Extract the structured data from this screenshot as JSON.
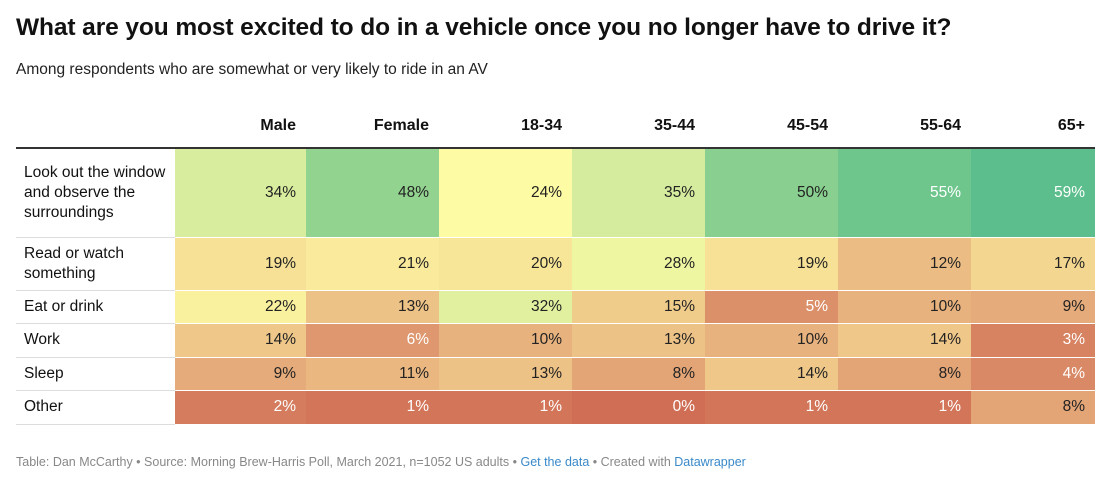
{
  "header": {
    "title": "What are you most excited to do in a vehicle once you no longer have to drive it?",
    "subtitle": "Among respondents who are somewhat or very likely to ride in an AV"
  },
  "chart_data": {
    "type": "heatmap",
    "columns": [
      "Male",
      "Female",
      "18-34",
      "35-44",
      "45-54",
      "55-64",
      "65+"
    ],
    "rows": [
      {
        "label": "Look out the window and observe the surroundings",
        "values": [
          34,
          48,
          24,
          35,
          50,
          55,
          59
        ]
      },
      {
        "label": "Read or watch something",
        "values": [
          19,
          21,
          20,
          28,
          19,
          12,
          17
        ]
      },
      {
        "label": "Eat or drink",
        "values": [
          22,
          13,
          32,
          15,
          5,
          10,
          9
        ]
      },
      {
        "label": "Work",
        "values": [
          14,
          6,
          10,
          13,
          10,
          14,
          3
        ]
      },
      {
        "label": "Sleep",
        "values": [
          9,
          11,
          13,
          8,
          14,
          8,
          4
        ]
      },
      {
        "label": "Other",
        "values": [
          2,
          1,
          1,
          0,
          1,
          1,
          8
        ]
      }
    ],
    "value_suffix": "%",
    "color_stops": [
      {
        "value": 0,
        "color": "#cf6e55"
      },
      {
        "value": 10,
        "color": "#e8b27e"
      },
      {
        "value": 24,
        "color": "#fdfba3"
      },
      {
        "value": 35,
        "color": "#d5ec9e"
      },
      {
        "value": 48,
        "color": "#93d390"
      },
      {
        "value": 59,
        "color": "#5bbe8c"
      }
    ]
  },
  "footer": {
    "credit": "Table: Dan McCarthy • Source: Morning Brew-Harris Poll, March 2021, n=1052 US adults • ",
    "get_data_link": "Get the data",
    "separator": " • Created with ",
    "datawrapper_link": "Datawrapper"
  }
}
